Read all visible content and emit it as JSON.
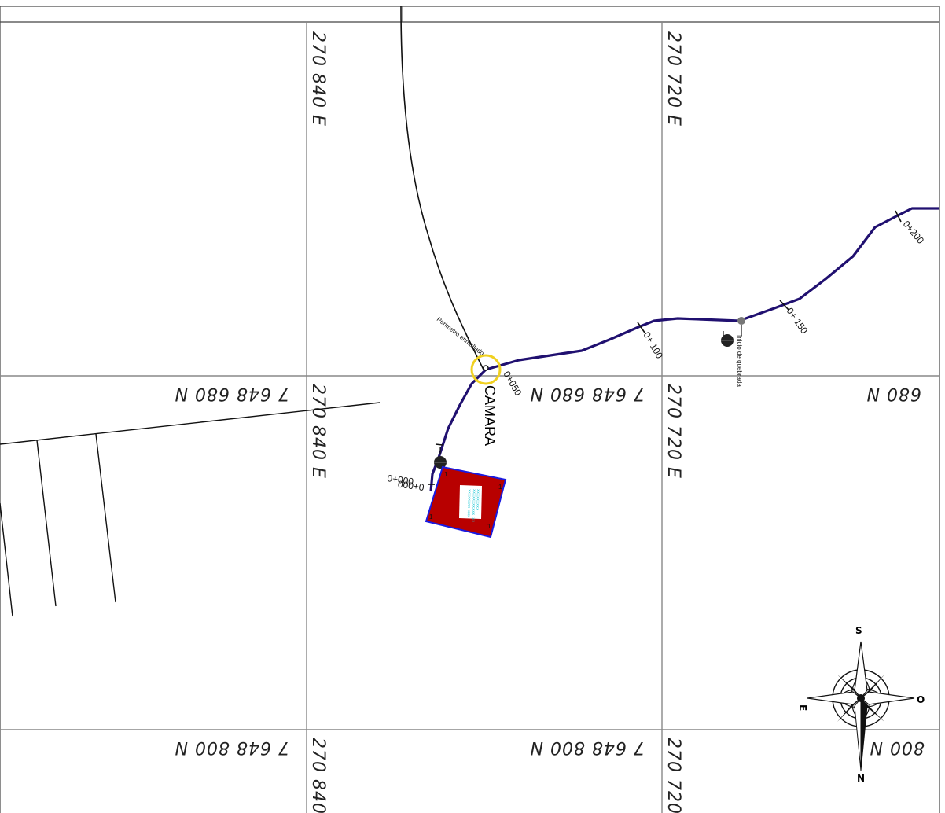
{
  "grid": {
    "easting_labels": [
      "270 840 E",
      "270 720 E"
    ],
    "northing_labels": [
      "7 648 680 N",
      "680 N",
      "7 648 800 N",
      "800 N"
    ]
  },
  "stations": {
    "s0": "0+000",
    "s50": "0+050",
    "s100": "0+ 100",
    "s150": "0+ 150",
    "s200": "0+200"
  },
  "labels": {
    "camara": "CAMARA",
    "inicio": "Inicio de quebrada",
    "perimetro": "Perimetro enmallado"
  },
  "compass": {
    "north": "N",
    "south": "S",
    "east": "E",
    "west": "O"
  },
  "colors": {
    "pipeline": "#201070",
    "building_fill": "#b80000",
    "building_outline": "#1a1ae0",
    "highlight_circle": "#f0d020",
    "grid": "#888888"
  }
}
